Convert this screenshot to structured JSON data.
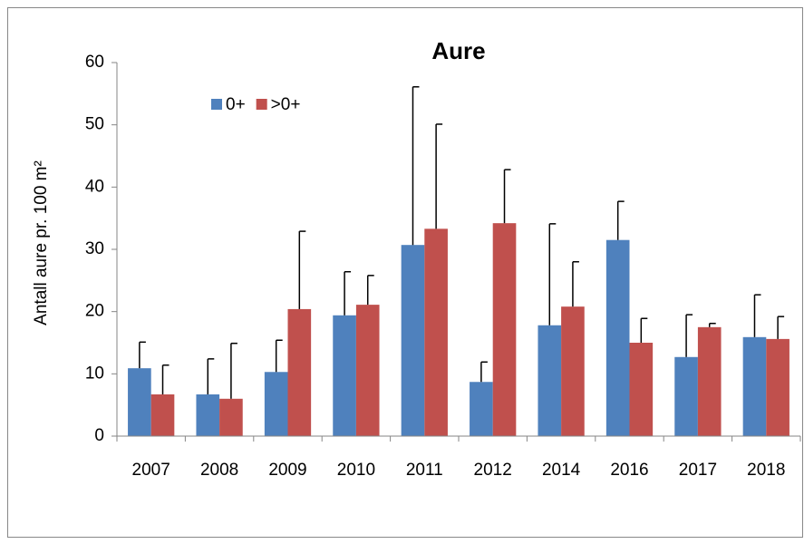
{
  "chart_data": {
    "type": "bar",
    "title": "Aure",
    "y_label": "Antall aure pr. 100 m²",
    "categories": [
      "2007",
      "2008",
      "2009",
      "2010",
      "2011",
      "2012",
      "2014",
      "2016",
      "2017",
      "2018"
    ],
    "series": [
      {
        "name": "0+",
        "color": "#4f81bd",
        "values": [
          10.9,
          6.7,
          10.3,
          19.4,
          30.7,
          8.7,
          17.8,
          31.5,
          12.7,
          15.9
        ],
        "errors": [
          4.2,
          5.7,
          5.1,
          7.0,
          25.4,
          3.2,
          16.3,
          6.2,
          6.8,
          6.8
        ]
      },
      {
        "name": ">0+",
        "color": "#c0504d",
        "values": [
          6.7,
          6.0,
          20.4,
          21.1,
          33.3,
          34.2,
          20.8,
          15.0,
          17.5,
          15.6
        ],
        "errors": [
          4.7,
          8.9,
          12.5,
          4.7,
          16.8,
          8.6,
          7.2,
          3.9,
          0.6,
          3.6
        ]
      }
    ],
    "ylim": [
      0,
      60
    ],
    "yticks": [
      0,
      10,
      20,
      30,
      40,
      50,
      60
    ],
    "grid": false,
    "legend": "top-left"
  }
}
